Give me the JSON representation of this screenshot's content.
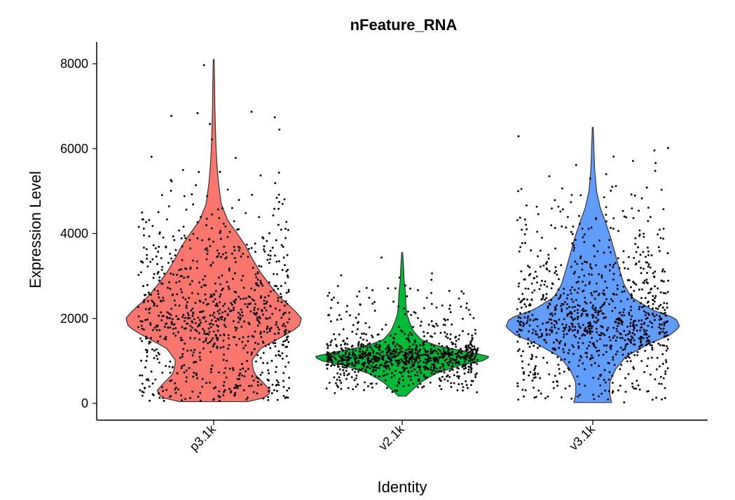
{
  "chart_data": {
    "type": "violin",
    "title": "nFeature_RNA",
    "xlabel": "Identity",
    "ylabel": "Expression Level",
    "categories": [
      "p3.1k",
      "v2.1k",
      "v3.1k"
    ],
    "ylim": [
      -400,
      8500
    ],
    "yticks": [
      0,
      2000,
      4000,
      6000,
      8000
    ],
    "grid": false,
    "legend": "none",
    "series": [
      {
        "category": "p3.1k",
        "color": "#F8766D",
        "min": 40,
        "max": 8100,
        "point_count": 900,
        "density": [
          [
            40,
            0.36
          ],
          [
            150,
            0.57
          ],
          [
            300,
            0.6
          ],
          [
            450,
            0.54
          ],
          [
            700,
            0.43
          ],
          [
            1000,
            0.4
          ],
          [
            1300,
            0.5
          ],
          [
            1600,
            0.75
          ],
          [
            1800,
            0.9
          ],
          [
            2000,
            0.93
          ],
          [
            2200,
            0.85
          ],
          [
            2500,
            0.7
          ],
          [
            2800,
            0.59
          ],
          [
            3100,
            0.49
          ],
          [
            3400,
            0.41
          ],
          [
            3700,
            0.34
          ],
          [
            4000,
            0.25
          ],
          [
            4300,
            0.15
          ],
          [
            4700,
            0.08
          ],
          [
            5200,
            0.05
          ],
          [
            5600,
            0.035
          ],
          [
            6000,
            0.025
          ],
          [
            6500,
            0.018
          ],
          [
            7000,
            0.012
          ],
          [
            7500,
            0.01
          ],
          [
            8100,
            0.004
          ]
        ]
      },
      {
        "category": "v2.1k",
        "color": "#00BA38",
        "min": 170,
        "max": 3550,
        "point_count": 1000,
        "density": [
          [
            170,
            0.04
          ],
          [
            300,
            0.1
          ],
          [
            500,
            0.2
          ],
          [
            700,
            0.35
          ],
          [
            900,
            0.62
          ],
          [
            1000,
            0.85
          ],
          [
            1100,
            0.93
          ],
          [
            1200,
            0.73
          ],
          [
            1350,
            0.38
          ],
          [
            1500,
            0.2
          ],
          [
            1700,
            0.12
          ],
          [
            1900,
            0.08
          ],
          [
            2100,
            0.05
          ],
          [
            2300,
            0.04
          ],
          [
            2600,
            0.035
          ],
          [
            2900,
            0.02
          ],
          [
            3200,
            0.015
          ],
          [
            3550,
            0.005
          ]
        ]
      },
      {
        "category": "v3.1k",
        "color": "#619CFF",
        "min": 20,
        "max": 6500,
        "point_count": 1000,
        "density": [
          [
            20,
            0.2
          ],
          [
            200,
            0.18
          ],
          [
            500,
            0.18
          ],
          [
            800,
            0.24
          ],
          [
            1100,
            0.35
          ],
          [
            1400,
            0.59
          ],
          [
            1600,
            0.81
          ],
          [
            1800,
            0.92
          ],
          [
            2000,
            0.88
          ],
          [
            2200,
            0.63
          ],
          [
            2500,
            0.41
          ],
          [
            2800,
            0.33
          ],
          [
            3100,
            0.29
          ],
          [
            3500,
            0.24
          ],
          [
            3900,
            0.19
          ],
          [
            4300,
            0.13
          ],
          [
            4600,
            0.08
          ],
          [
            5000,
            0.04
          ],
          [
            5500,
            0.02
          ],
          [
            6000,
            0.012
          ],
          [
            6500,
            0.005
          ]
        ]
      }
    ]
  }
}
